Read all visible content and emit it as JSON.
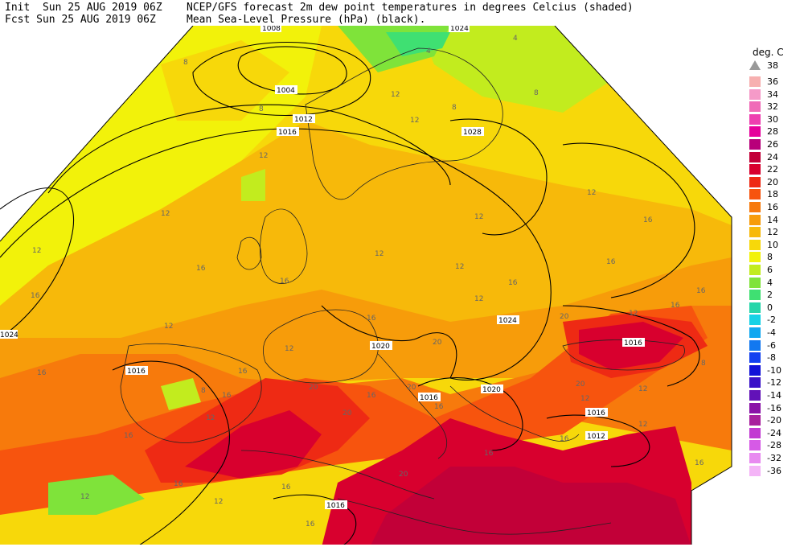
{
  "header": {
    "init": "Init  Sun 25 AUG 2019 06Z",
    "fcst": "Fcst Sun 25 AUG 2019 06Z",
    "title_line1": "NCEP/GFS forecast 2m dew point temperatures in degrees Celcius (shaded)",
    "title_line2": "Mean Sea-Level Pressure (hPa) (black)."
  },
  "legend": {
    "unit": "deg. C",
    "top_arrow_value": "38",
    "entries": [
      {
        "label": "36",
        "color": "#f7b0b0"
      },
      {
        "label": "34",
        "color": "#f59ac8"
      },
      {
        "label": "32",
        "color": "#f06bb8"
      },
      {
        "label": "30",
        "color": "#ee3fb0"
      },
      {
        "label": "28",
        "color": "#e6009b"
      },
      {
        "label": "26",
        "color": "#b8007a"
      },
      {
        "label": "24",
        "color": "#c20038"
      },
      {
        "label": "22",
        "color": "#d8002e"
      },
      {
        "label": "20",
        "color": "#ee2a14"
      },
      {
        "label": "18",
        "color": "#f7540e"
      },
      {
        "label": "16",
        "color": "#f77a0c"
      },
      {
        "label": "14",
        "color": "#f79c0a"
      },
      {
        "label": "12",
        "color": "#f7b90a"
      },
      {
        "label": "10",
        "color": "#f7d80a"
      },
      {
        "label": "8",
        "color": "#f2f20a"
      },
      {
        "label": "6",
        "color": "#c2ec1e"
      },
      {
        "label": "4",
        "color": "#7fe33a"
      },
      {
        "label": "2",
        "color": "#3fe072"
      },
      {
        "label": "0",
        "color": "#26d6aa"
      },
      {
        "label": "-2",
        "color": "#16d2e6"
      },
      {
        "label": "-4",
        "color": "#12a8f0"
      },
      {
        "label": "-6",
        "color": "#1278f0"
      },
      {
        "label": "-8",
        "color": "#1240f0"
      },
      {
        "label": "-10",
        "color": "#1212d8"
      },
      {
        "label": "-12",
        "color": "#3a12c8"
      },
      {
        "label": "-14",
        "color": "#6212b8"
      },
      {
        "label": "-16",
        "color": "#8a12a8"
      },
      {
        "label": "-20",
        "color": "#a8209e"
      },
      {
        "label": "-24",
        "color": "#c23ad2"
      },
      {
        "label": "-28",
        "color": "#d65ae6"
      },
      {
        "label": "-32",
        "color": "#e88af0"
      },
      {
        "label": "-36",
        "color": "#f4b4f7"
      }
    ]
  },
  "map": {
    "isobar_labels": [
      "1008",
      "1024",
      "1004",
      "1012",
      "1016",
      "1028",
      "1024",
      "1016",
      "1016",
      "1020",
      "1016",
      "1020",
      "1024",
      "1016",
      "1012",
      "1016"
    ],
    "dewpoint_labels": [
      "8",
      "4",
      "4",
      "8",
      "8",
      "12",
      "8",
      "12",
      "12",
      "12",
      "12",
      "16",
      "12",
      "12",
      "16",
      "12",
      "16",
      "16",
      "16",
      "16",
      "16",
      "16",
      "12",
      "16",
      "12",
      "12",
      "20",
      "20",
      "20",
      "20",
      "16",
      "16",
      "16",
      "8",
      "16",
      "12",
      "20",
      "16",
      "12",
      "16",
      "12",
      "12",
      "16",
      "16",
      "12",
      "8",
      "20",
      "20",
      "12",
      "16",
      "12",
      "12",
      "16",
      "16",
      "16"
    ]
  }
}
